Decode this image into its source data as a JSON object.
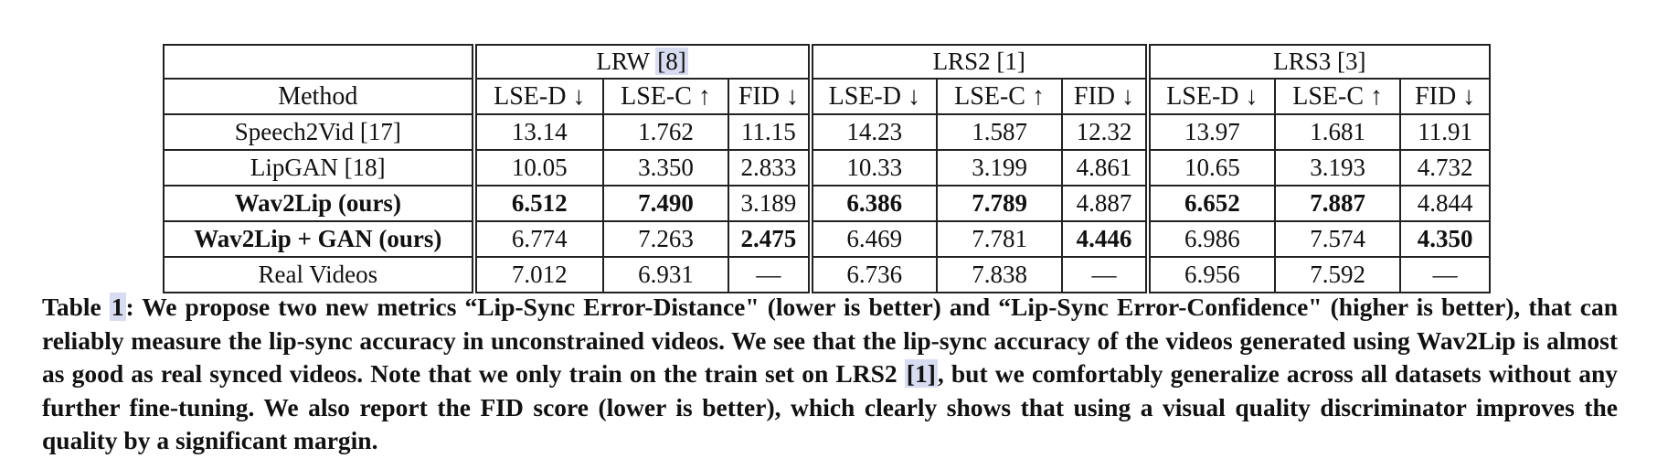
{
  "table": {
    "datasets": [
      {
        "name": "LRW",
        "cite": "[8]"
      },
      {
        "name": "LRS2",
        "cite": "[1]"
      },
      {
        "name": "LRS3",
        "cite": "[3]"
      }
    ],
    "method_header": "Method",
    "metric_headers": [
      "LSE-D ↓",
      "LSE-C ↑",
      "FID ↓"
    ],
    "rows": [
      {
        "method": "Speech2Vid [17]",
        "bold_method": false,
        "values": [
          "13.14",
          "1.762",
          "11.15",
          "14.23",
          "1.587",
          "12.32",
          "13.97",
          "1.681",
          "11.91"
        ],
        "bold": [
          false,
          false,
          false,
          false,
          false,
          false,
          false,
          false,
          false
        ]
      },
      {
        "method": "LipGAN [18]",
        "bold_method": false,
        "values": [
          "10.05",
          "3.350",
          "2.833",
          "10.33",
          "3.199",
          "4.861",
          "10.65",
          "3.193",
          "4.732"
        ],
        "bold": [
          false,
          false,
          false,
          false,
          false,
          false,
          false,
          false,
          false
        ]
      },
      {
        "method": "Wav2Lip (ours)",
        "bold_method": true,
        "values": [
          "6.512",
          "7.490",
          "3.189",
          "6.386",
          "7.789",
          "4.887",
          "6.652",
          "7.887",
          "4.844"
        ],
        "bold": [
          true,
          true,
          false,
          true,
          true,
          false,
          true,
          true,
          false
        ]
      },
      {
        "method": "Wav2Lip + GAN (ours)",
        "bold_method": true,
        "values": [
          "6.774",
          "7.263",
          "2.475",
          "6.469",
          "7.781",
          "4.446",
          "6.986",
          "7.574",
          "4.350"
        ],
        "bold": [
          false,
          false,
          true,
          false,
          false,
          true,
          false,
          false,
          true
        ]
      },
      {
        "method": "Real Videos",
        "bold_method": false,
        "values": [
          "7.012",
          "6.931",
          "—",
          "6.736",
          "7.838",
          "—",
          "6.956",
          "7.592",
          "—"
        ],
        "bold": [
          false,
          false,
          false,
          false,
          false,
          false,
          false,
          false,
          false
        ]
      }
    ]
  },
  "caption": {
    "label": "Table",
    "number": "1",
    "text_part1": ": We propose two new metrics “Lip-Sync Error-Distance\" (lower is better) and “Lip-Sync Error-Confidence\" (higher is better), that can reliably measure the lip-sync accuracy in unconstrained videos. We see that the lip-sync accuracy of the videos generated using Wav2Lip is almost as good as real synced videos. Note that we only train on the train set on LRS2 ",
    "cite": "[1]",
    "text_part2": ", but we comfortably generalize across all datasets without any further fine-tuning. We also report the FID score (lower is better), which clearly shows that using a visual quality discriminator improves the quality by a significant margin."
  }
}
